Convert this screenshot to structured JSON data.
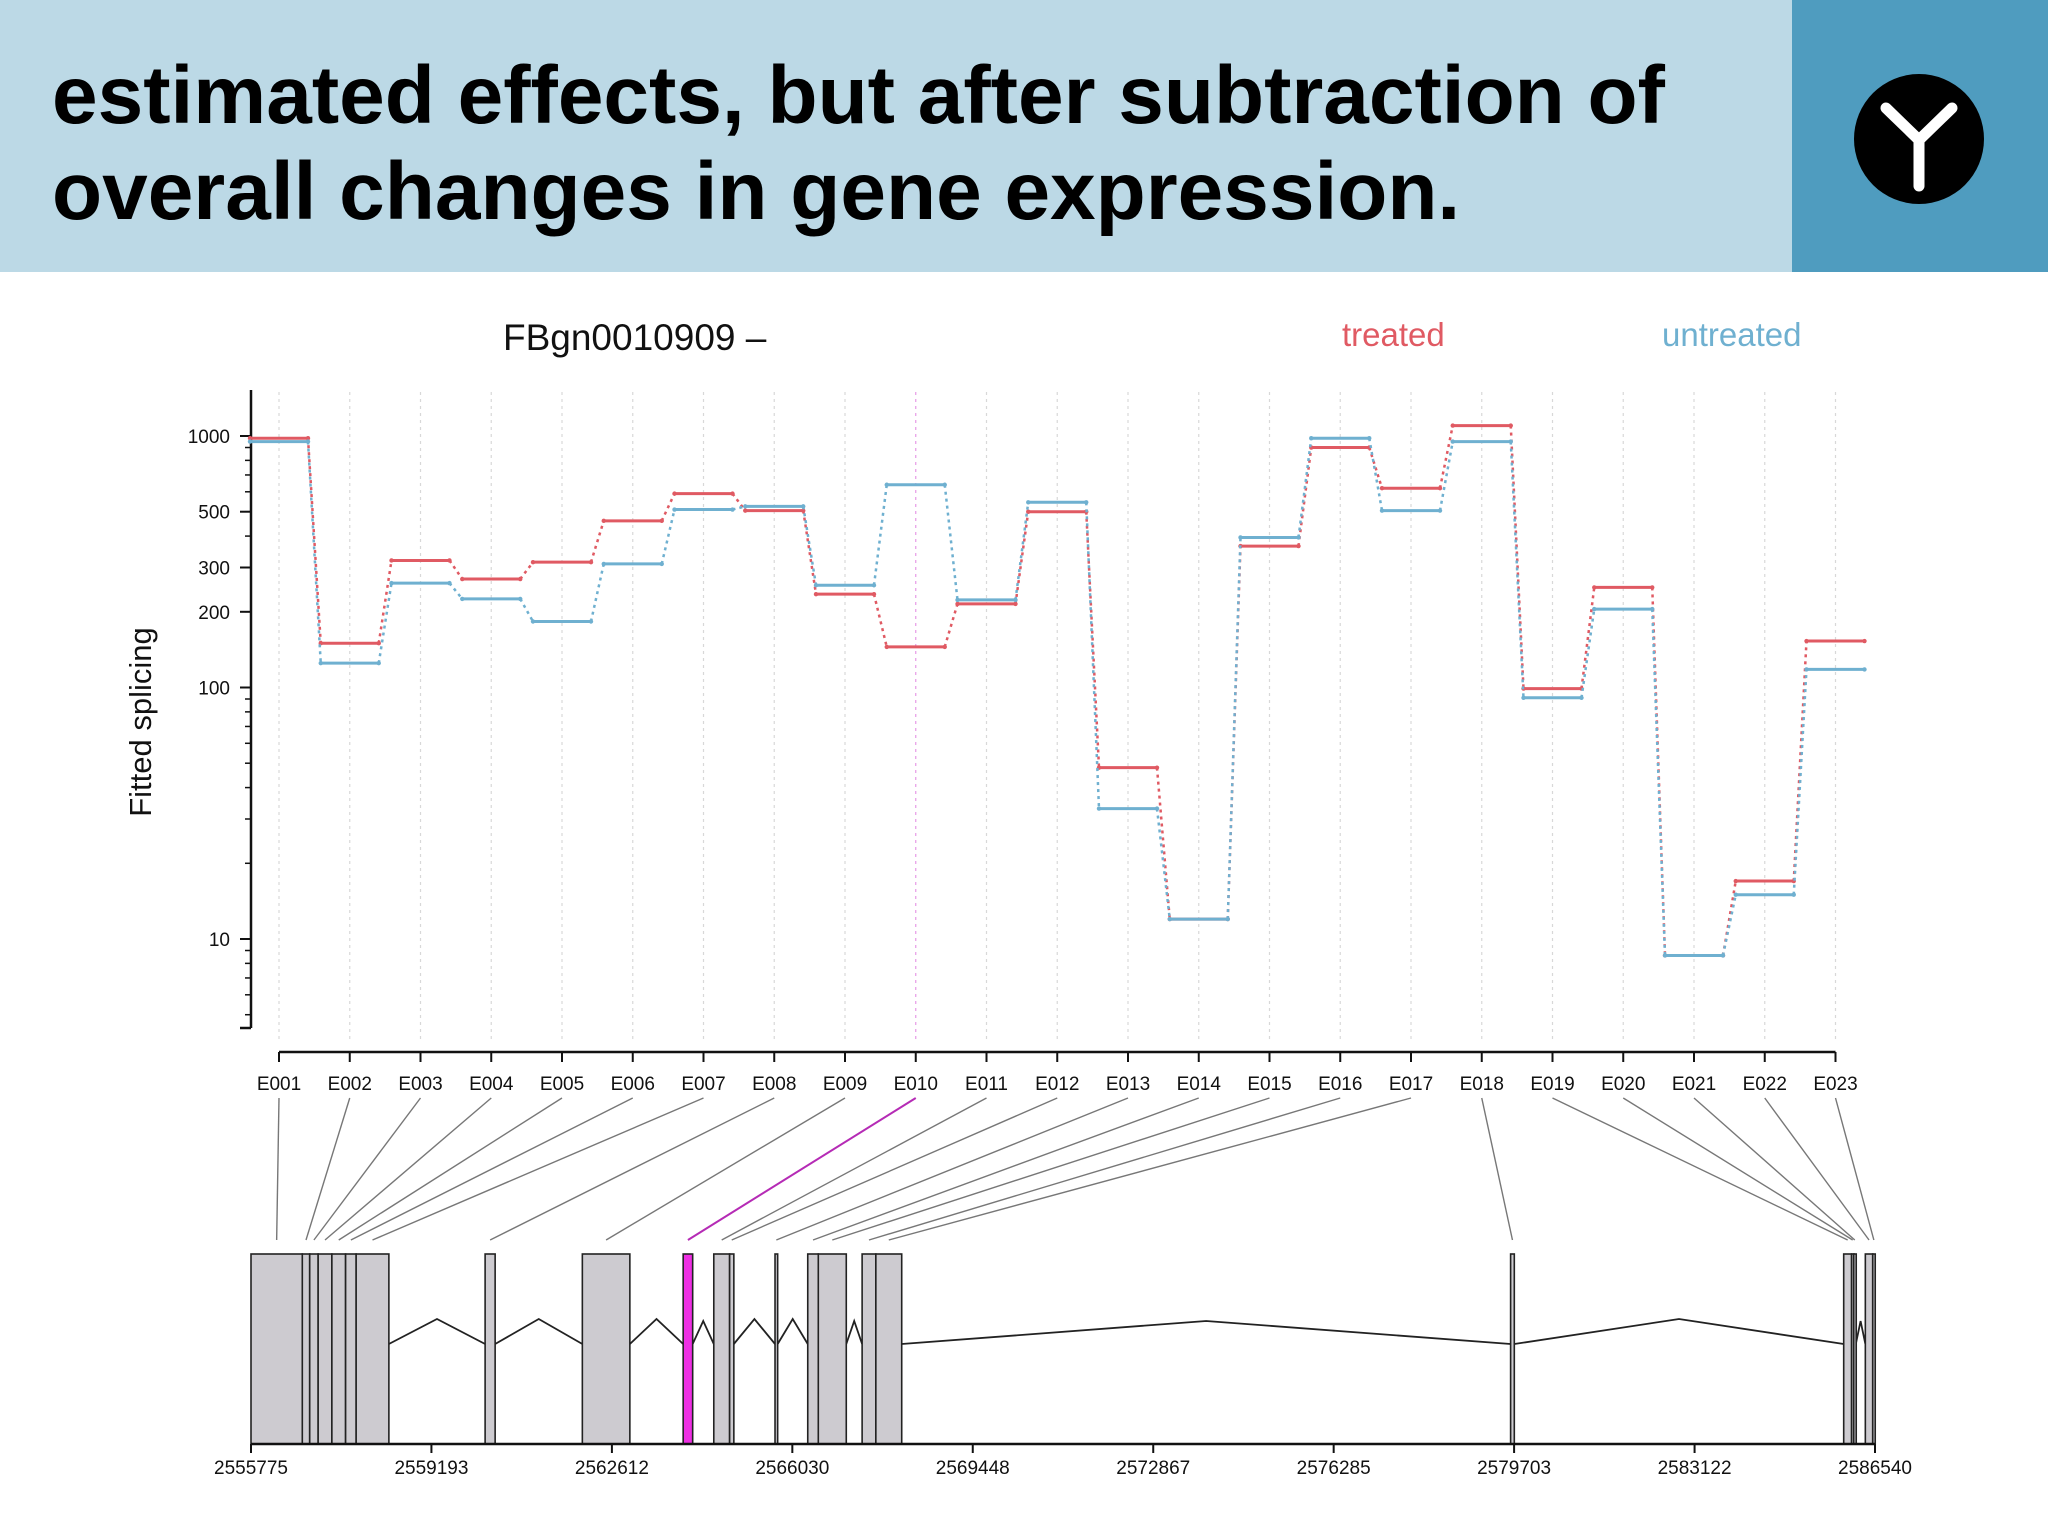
{
  "slide": {
    "title_line1": "estimated effects, but after subtraction of",
    "title_line2": "overall changes in gene expression.",
    "logo_icon": "antibody-y-icon"
  },
  "chart_data": {
    "type": "line",
    "title": "FBgn0010909 –",
    "ylabel": "Fitted splicing",
    "xlabel": "",
    "yscale": "log",
    "ylim": [
      3,
      1800
    ],
    "yticks": [
      10,
      100,
      200,
      300,
      500,
      1000
    ],
    "categories": [
      "E001",
      "E002",
      "E003",
      "E004",
      "E005",
      "E006",
      "E007",
      "E008",
      "E009",
      "E010",
      "E011",
      "E012",
      "E013",
      "E014",
      "E015",
      "E016",
      "E017",
      "E018",
      "E019",
      "E020",
      "E021",
      "E022",
      "E023"
    ],
    "highlighted_exon": "E010",
    "series": [
      {
        "name": "treated",
        "color": "#e05a63",
        "values": [
          980,
          150,
          320,
          270,
          315,
          460,
          590,
          505,
          235,
          145,
          215,
          500,
          48,
          12,
          365,
          900,
          620,
          1100,
          99,
          250,
          8.6,
          17,
          153
        ]
      },
      {
        "name": "untreated",
        "color": "#6fb0d0",
        "values": [
          950,
          125,
          260,
          225,
          183,
          310,
          510,
          525,
          255,
          640,
          223,
          545,
          33,
          12,
          395,
          980,
          505,
          950,
          91,
          205,
          8.6,
          15,
          118
        ]
      }
    ],
    "gene_model": {
      "coord_ticks": [
        "2555775",
        "2559193",
        "2562612",
        "2566030",
        "2569448",
        "2572867",
        "2576285",
        "2579703",
        "2583122",
        "2586540"
      ],
      "coord_range": [
        2555775,
        2586540
      ],
      "exons": [
        {
          "start": 2555775,
          "end": 2556747
        },
        {
          "start": 2556747,
          "end": 2556887
        },
        {
          "start": 2556887,
          "end": 2557047
        },
        {
          "start": 2557047,
          "end": 2557307
        },
        {
          "start": 2557307,
          "end": 2557567
        },
        {
          "start": 2557567,
          "end": 2557767
        },
        {
          "start": 2557767,
          "end": 2558387
        },
        {
          "start": 2560210,
          "end": 2560400
        },
        {
          "start": 2562052,
          "end": 2562952
        },
        {
          "start": 2563962,
          "end": 2564142
        },
        {
          "start": 2564542,
          "end": 2564842
        },
        {
          "start": 2564842,
          "end": 2564922
        },
        {
          "start": 2565702,
          "end": 2565752
        },
        {
          "start": 2566322,
          "end": 2566522
        },
        {
          "start": 2566522,
          "end": 2567052
        },
        {
          "start": 2567352,
          "end": 2567612
        },
        {
          "start": 2567612,
          "end": 2568102
        },
        {
          "start": 2579637,
          "end": 2579707
        },
        {
          "start": 2585947,
          "end": 2586097
        },
        {
          "start": 2586097,
          "end": 2586137
        },
        {
          "start": 2586137,
          "end": 2586177
        },
        {
          "start": 2586357,
          "end": 2586497
        },
        {
          "start": 2586497,
          "end": 2586540
        }
      ]
    }
  },
  "colors": {
    "header_bg": "#bcd9e6",
    "header_side": "#4f9cbf",
    "treated": "#e05a63",
    "untreated": "#6fb0d0",
    "highlight": "#ee2fe3",
    "exon_fill": "#cdcbd0"
  }
}
